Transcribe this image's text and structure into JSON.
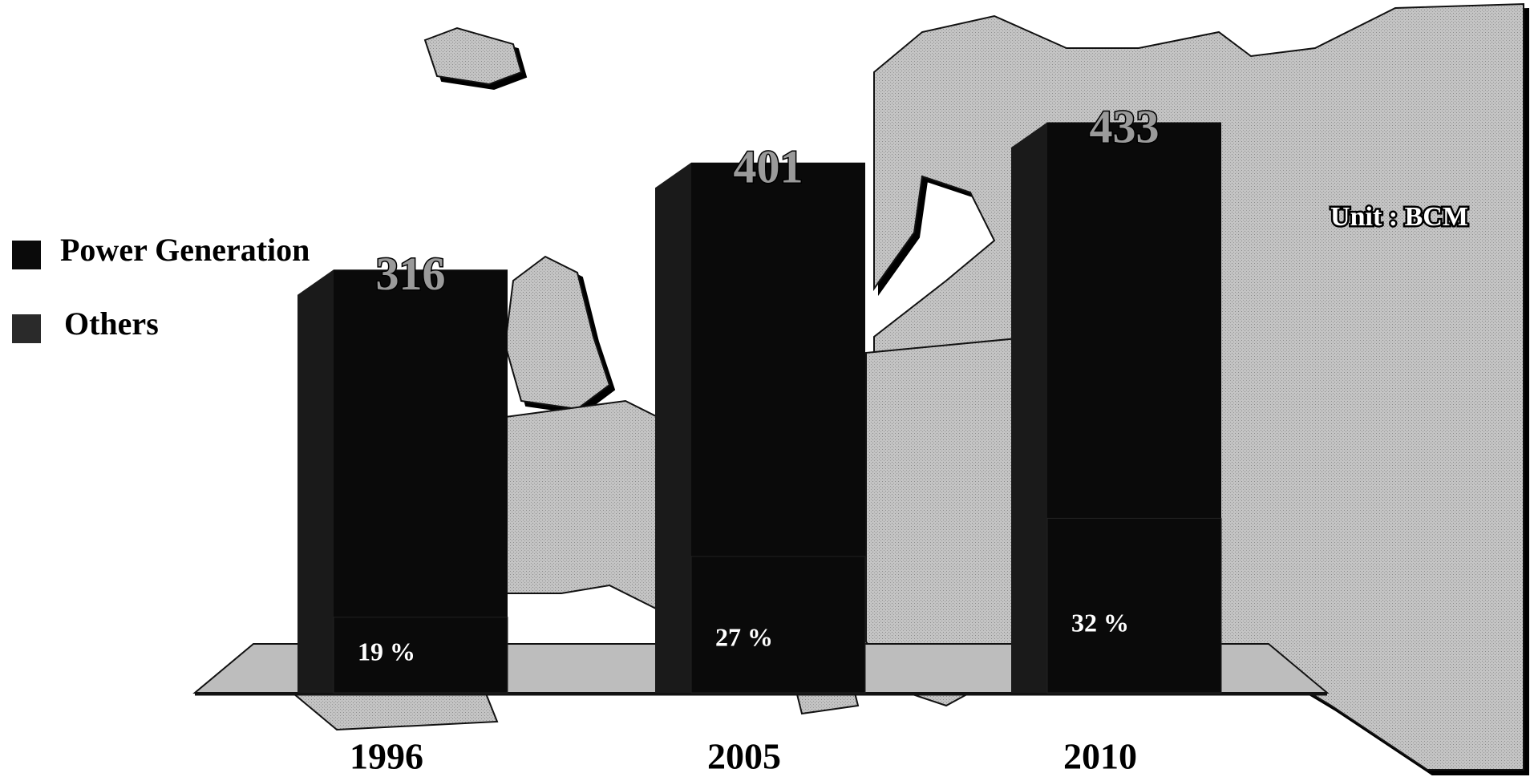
{
  "chart_data": {
    "type": "bar3d",
    "annotation": "Unit : BCM",
    "categories": [
      "1996",
      "2005",
      "2010"
    ],
    "values": [
      316,
      401,
      433
    ],
    "color": "#0a0a0a",
    "series": [
      {
        "name": "Power Generation",
        "color": "#0a0a0a",
        "values": [
          19,
          27,
          32
        ],
        "value_labels": [
          "19 %",
          "27 %",
          "32 %"
        ]
      },
      {
        "name": "Others",
        "color": "#2a2a2a"
      }
    ]
  }
}
